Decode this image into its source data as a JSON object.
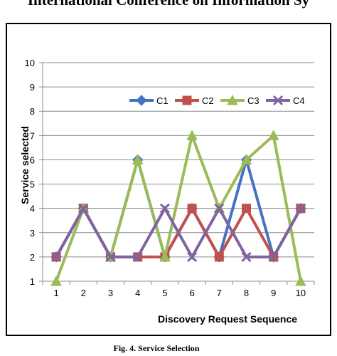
{
  "header_text": "International Conference on Information Sy",
  "caption": "Fig. 4. Service Selection",
  "chart_data": {
    "type": "line",
    "title": "",
    "xlabel": "Discovery Request Sequence",
    "ylabel": "Service selected",
    "categories": [
      "1",
      "2",
      "3",
      "4",
      "5",
      "6",
      "7",
      "8",
      "9",
      "10"
    ],
    "ylim": [
      1,
      10
    ],
    "yticks": [
      1,
      2,
      3,
      4,
      5,
      6,
      7,
      8,
      9,
      10
    ],
    "grid": "horizontal",
    "legend_position": "top-right",
    "series": [
      {
        "name": "C1",
        "color": "#4472C4",
        "marker": "diamond",
        "values": [
          2,
          4,
          2,
          6,
          2,
          4,
          2,
          6,
          2,
          4
        ]
      },
      {
        "name": "C2",
        "color": "#C0504D",
        "marker": "square",
        "values": [
          2,
          4,
          2,
          2,
          2,
          4,
          2,
          4,
          2,
          4
        ]
      },
      {
        "name": "C3",
        "color": "#9BBB59",
        "marker": "triangle",
        "values": [
          1,
          4,
          2,
          6,
          2,
          7,
          4,
          6,
          7,
          1
        ]
      },
      {
        "name": "C4",
        "color": "#8064A2",
        "marker": "x",
        "values": [
          2,
          4,
          2,
          2,
          4,
          2,
          4,
          2,
          2,
          4
        ]
      }
    ]
  }
}
